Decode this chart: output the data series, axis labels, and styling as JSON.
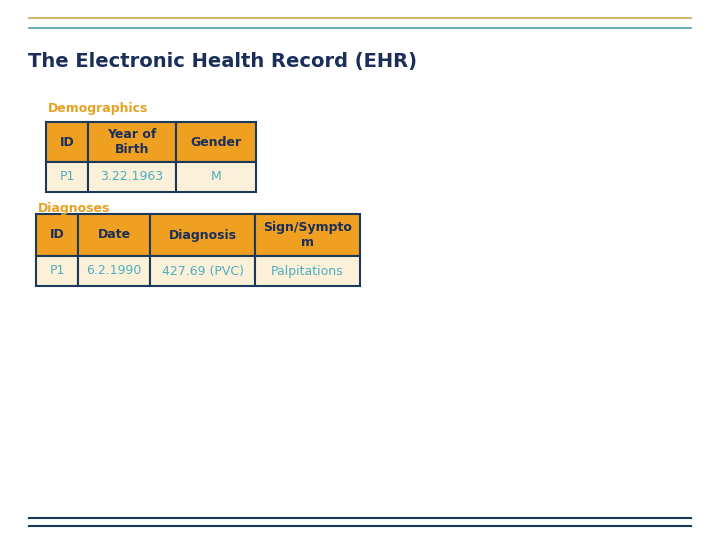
{
  "title": "The Electronic Health Record (EHR)",
  "title_color": "#1a2e5a",
  "title_fontsize": 14,
  "bg_color": "#ffffff",
  "top_line_color1": "#c8a84b",
  "top_line_color2": "#4a9fa8",
  "bottom_line_color": "#1a3a5c",
  "section1_label": "Demographics",
  "section2_label": "Diagnoses",
  "section_color": "#e8a020",
  "section_fontsize": 9,
  "demo_headers": [
    "ID",
    "Year of\nBirth",
    "Gender"
  ],
  "demo_data": [
    "P1",
    "3.22.1963",
    "M"
  ],
  "diag_headers": [
    "ID",
    "Date",
    "Diagnosis",
    "Sign/Sympto\nm"
  ],
  "diag_data": [
    "P1",
    "6.2.1990",
    "427.69 (PVC)",
    "Palpitations"
  ],
  "header_bg": "#f0a020",
  "header_text": "#1a2e5a",
  "data_bg": "#fdf0d8",
  "data_text": "#4ab0c0",
  "border_color": "#1a3a5c",
  "cell_fontsize": 9,
  "header_fontsize": 9
}
